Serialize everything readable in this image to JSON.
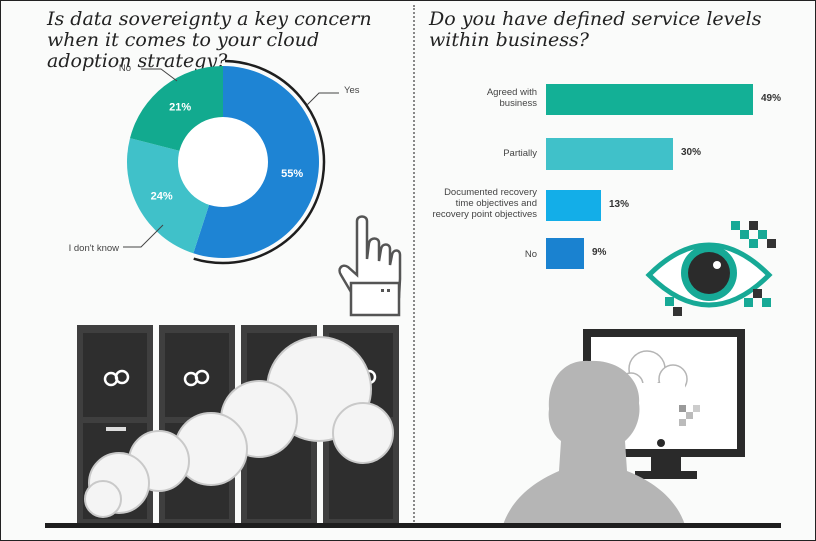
{
  "chart_data": [
    {
      "type": "pie",
      "title": "Is data sovereignty a key concern when it comes to your cloud adoption strategy?",
      "categories": [
        "Yes",
        "I don't know",
        "No"
      ],
      "values": [
        55,
        24,
        21
      ],
      "value_labels": [
        "55%",
        "24%",
        "21%"
      ],
      "colors": [
        "#1e84d4",
        "#40c1c9",
        "#12aa8f"
      ]
    },
    {
      "type": "bar",
      "orientation": "horizontal",
      "title": "Do you have defined service levels within business?",
      "categories": [
        [
          "Agreed with",
          "business"
        ],
        [
          "Partially"
        ],
        [
          "Documented recovery",
          "time objectives and",
          "recovery point objectives"
        ],
        [
          "No"
        ]
      ],
      "values": [
        49,
        30,
        13,
        9
      ],
      "value_labels": [
        "49%",
        "30%",
        "13%",
        "9%"
      ],
      "colors": [
        "#13b096",
        "#40c1c9",
        "#13aee8",
        "#1a82d0"
      ]
    }
  ]
}
